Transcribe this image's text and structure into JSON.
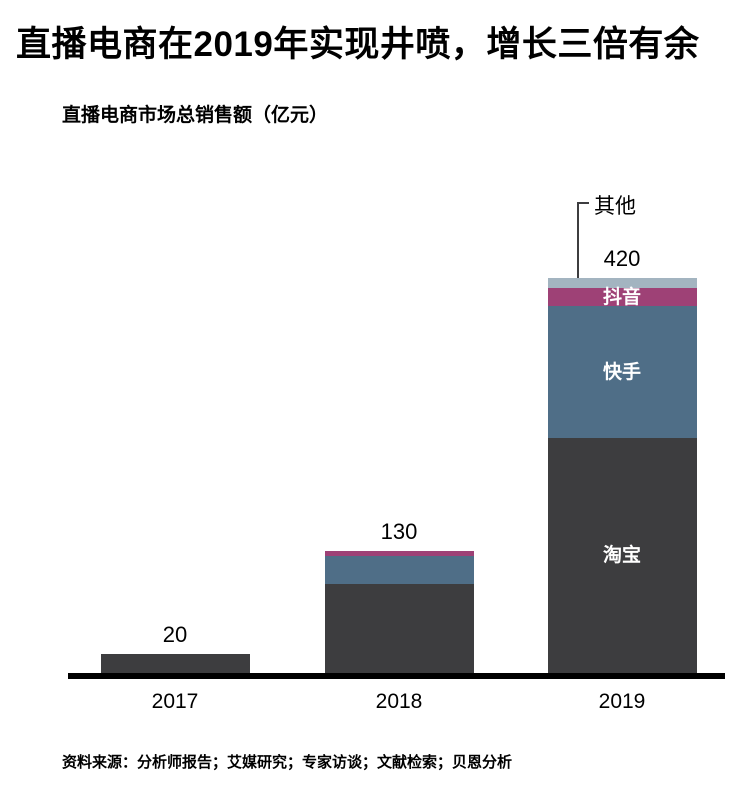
{
  "page": {
    "title": "直播电商在2019年实现井喷，增长三倍有余",
    "source_note": "资料来源：分析师报告；艾媒研究；专家访谈；文献检索；贝恩分析"
  },
  "chart_data": {
    "type": "bar",
    "stacked": true,
    "title": "直播电商市场总销售额（亿元）",
    "unit": "亿元",
    "categories": [
      "2017",
      "2018",
      "2019"
    ],
    "totals": [
      20,
      130,
      420
    ],
    "series": [
      {
        "name": "淘宝",
        "color": "#3d3d3f",
        "values": [
          20,
          95,
          250
        ]
      },
      {
        "name": "快手",
        "color": "#4f6e87",
        "values": [
          0,
          30,
          140
        ]
      },
      {
        "name": "抖音",
        "color": "#9e4176",
        "values": [
          0,
          5,
          20
        ]
      },
      {
        "name": "其他",
        "color": "#a3b4c0",
        "values": [
          0,
          0,
          10
        ]
      }
    ],
    "segment_labels_visible_on": "2019",
    "annotation": {
      "text": "其他",
      "target_category": "2019",
      "target_segment": "其他"
    },
    "value_label_color": "#000000",
    "segment_label_color": "#ffffff",
    "axis_color": "#000000",
    "grid": false,
    "legend": "none",
    "ylim": [
      0,
      460
    ]
  }
}
